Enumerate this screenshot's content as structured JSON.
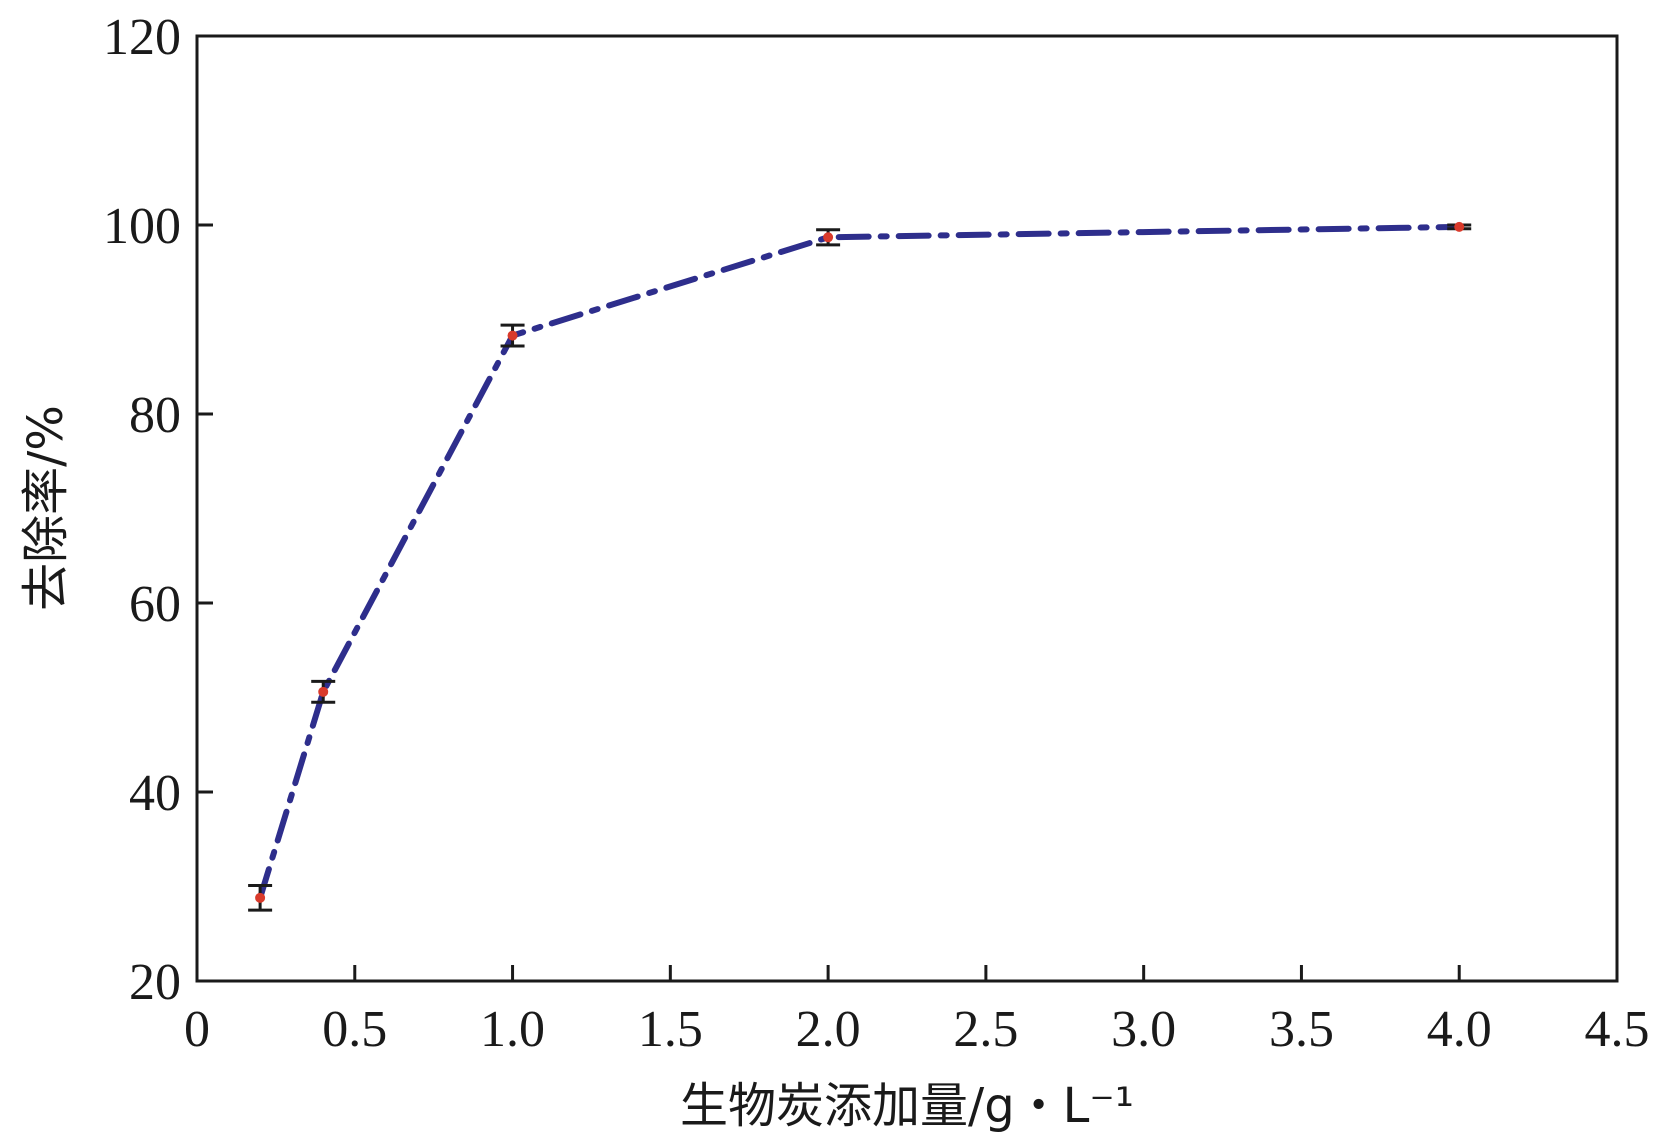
{
  "chart_data": {
    "type": "line",
    "title": "",
    "xlabel": "生物炭添加量/g・L⁻¹",
    "ylabel": "去除率/%",
    "xlim": [
      0,
      4.5
    ],
    "ylim": [
      20,
      120
    ],
    "xticks": [
      "0",
      "0.5",
      "1.0",
      "1.5",
      "2.0",
      "2.5",
      "3.0",
      "3.5",
      "4.0",
      "4.5"
    ],
    "yticks": [
      "20",
      "40",
      "60",
      "80",
      "100",
      "120"
    ],
    "grid": false,
    "legend": "none",
    "series": [
      {
        "x": [
          0.2,
          0.4,
          1.0,
          2.0,
          4.0
        ],
        "y": [
          28.8,
          50.6,
          88.3,
          98.7,
          99.8
        ],
        "error": [
          1.3,
          1.1,
          1.1,
          0.8,
          0.2
        ],
        "line_color": "#2e2e8c",
        "marker_color": "#d93a2b",
        "line_style": "dash-dot"
      }
    ]
  }
}
